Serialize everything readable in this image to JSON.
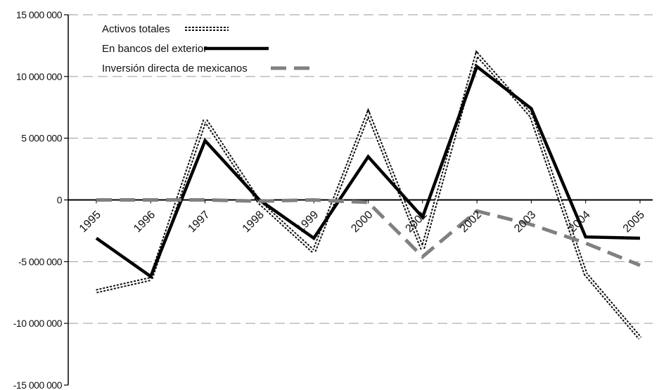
{
  "chart_data": {
    "type": "line",
    "categories": [
      "1995",
      "1996",
      "1997",
      "1998",
      "1999",
      "2000",
      "2001",
      "2002",
      "2003",
      "2004",
      "2005"
    ],
    "ylim": [
      -15000000,
      15000000
    ],
    "yticks": [
      15000000,
      10000000,
      5000000,
      0,
      -5000000,
      -10000000,
      -15000000
    ],
    "ytick_labels": [
      "15 000 000",
      "10 000 000",
      "5 000 000",
      "0",
      "-5 000 000",
      "-10 000 000",
      "-15 000 000"
    ],
    "grid": "horizontal-dashed",
    "legend_position": "top-left",
    "series": [
      {
        "name": "Activos totales",
        "style": "dotted-outline",
        "color": "#111111",
        "values": [
          -7400000,
          -6400000,
          6500000,
          -200000,
          -4200000,
          7000000,
          -4000000,
          11800000,
          6800000,
          -6000000,
          -11200000
        ]
      },
      {
        "name": "En bancos del exterior",
        "style": "solid",
        "color": "#000000",
        "values": [
          -3100000,
          -6200000,
          4800000,
          0,
          -3100000,
          3500000,
          -1400000,
          10800000,
          7400000,
          -3000000,
          -3100000
        ]
      },
      {
        "name": "Inversión directa de mexicanos",
        "style": "dashed",
        "color": "#808080",
        "values": [
          0,
          0,
          0,
          -100000,
          0,
          -200000,
          -4600000,
          -900000,
          -2000000,
          -3500000,
          -5300000
        ]
      }
    ]
  }
}
